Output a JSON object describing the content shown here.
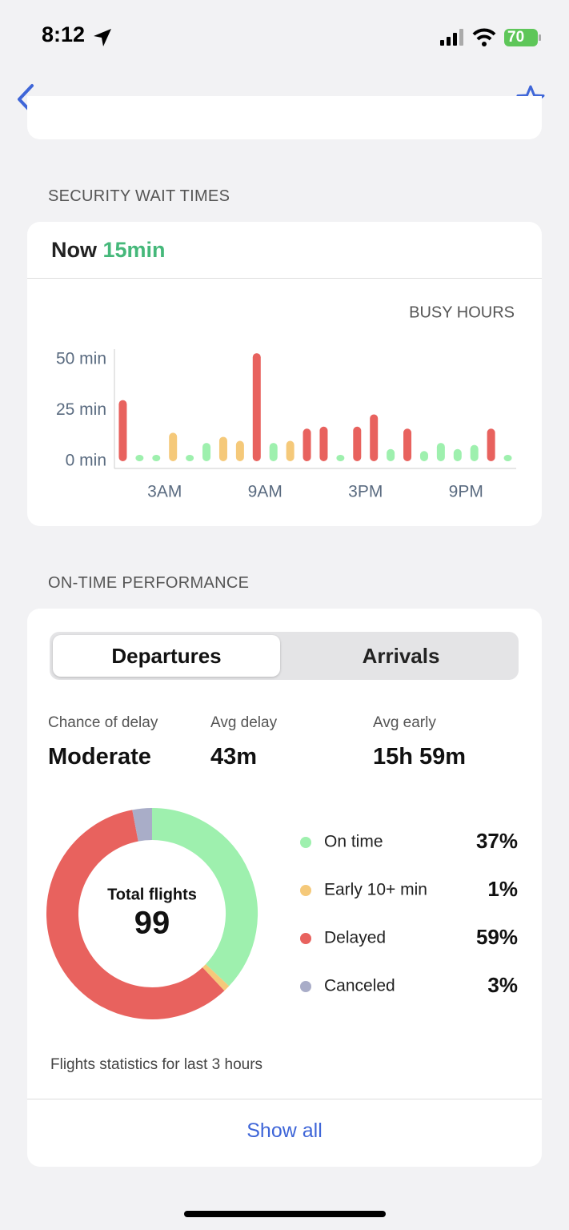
{
  "status_bar": {
    "time": "8:12",
    "battery": "70"
  },
  "security": {
    "title": "SECURITY WAIT TIMES",
    "now_label": "Now",
    "now_value": "15min"
  },
  "chart_data": [
    {
      "type": "bar",
      "title": "BUSY HOURS",
      "categories": [
        null,
        null,
        null,
        "3AM",
        null,
        null,
        null,
        null,
        null,
        "9AM",
        null,
        null,
        null,
        null,
        null,
        "3PM",
        null,
        null,
        null,
        null,
        null,
        "9PM",
        null,
        null
      ],
      "values": [
        30,
        2,
        2,
        14,
        2,
        9,
        12,
        10,
        53,
        9,
        10,
        16,
        17,
        2,
        17,
        23,
        6,
        16,
        5,
        9,
        6,
        8,
        16,
        3
      ],
      "colors": [
        "#e8625e",
        "#9ef0ae",
        "#9ef0ae",
        "#f5c97a",
        "#9ef0ae",
        "#9ef0ae",
        "#f5c97a",
        "#f5c97a",
        "#e8625e",
        "#9ef0ae",
        "#f5c97a",
        "#e8625e",
        "#e8625e",
        "#9ef0ae",
        "#e8625e",
        "#e8625e",
        "#9ef0ae",
        "#e8625e",
        "#9ef0ae",
        "#9ef0ae",
        "#9ef0ae",
        "#9ef0ae",
        "#e8625e",
        "#9ef0ae"
      ],
      "ylim": [
        0,
        55
      ],
      "yticks": [
        {
          "value": 0,
          "label": "0 min"
        },
        {
          "value": 25,
          "label": "25 min"
        },
        {
          "value": 50,
          "label": "50 min"
        }
      ],
      "grid": false
    },
    {
      "type": "donut",
      "center_label": "Total flights",
      "center_value": 99,
      "categories": [
        "On time",
        "Early 10+ min",
        "Delayed",
        "Canceled"
      ],
      "values": [
        37,
        1,
        59,
        3
      ],
      "value_labels": [
        "37%",
        "1%",
        "59%",
        "3%"
      ],
      "colors": [
        "#9ef0ae",
        "#f5c97a",
        "#e8625e",
        "#a9adc8"
      ]
    }
  ],
  "performance": {
    "title": "ON-TIME PERFORMANCE",
    "tabs": [
      "Departures",
      "Arrivals"
    ],
    "stats": [
      {
        "label": "Chance of delay",
        "value": "Moderate"
      },
      {
        "label": "Avg delay",
        "value": "43m"
      },
      {
        "label": "Avg early",
        "value": "15h 59m"
      }
    ],
    "footnote": "Flights statistics for last 3 hours",
    "link": "Show all"
  }
}
